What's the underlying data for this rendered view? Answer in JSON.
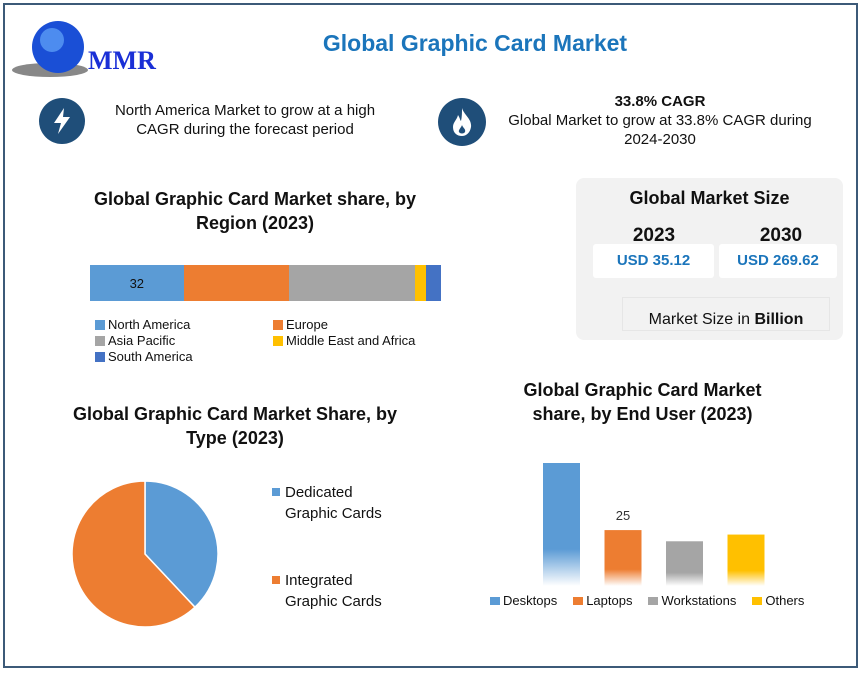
{
  "logo": {
    "text": "MMR"
  },
  "header": {
    "title": "Global Graphic Card Market"
  },
  "highlights": [
    {
      "icon": "lightning-icon",
      "text1": "North America Market to grow at a high",
      "text2": "CAGR during the forecast period"
    },
    {
      "icon": "flame-icon",
      "title": "33.8% CAGR",
      "text1": "Global Market to grow at 33.8% CAGR during",
      "text2": "2024-2030"
    }
  ],
  "market_size": {
    "title": "Global Market Size",
    "years": [
      "2023",
      "2030"
    ],
    "values": [
      "USD 35.12",
      "USD 269.62"
    ],
    "unit_prefix": "Market Size in ",
    "unit_bold": "Billion"
  },
  "chart_data": [
    {
      "type": "bar",
      "orientation": "horizontal-stacked",
      "title": "Global Graphic Card Market share, by Region (2023)",
      "title1": "Global Graphic Card Market share, by",
      "title2": "Region (2023)",
      "series": [
        {
          "name": "North America",
          "value": 32,
          "color": "#5b9bd5",
          "label": "32"
        },
        {
          "name": "Europe",
          "value": 36,
          "color": "#ed7d31"
        },
        {
          "name": "Asia Pacific",
          "value": 43,
          "color": "#a5a5a5"
        },
        {
          "name": "Middle East and Africa",
          "value": 4,
          "color": "#ffc000"
        },
        {
          "name": "South America",
          "value": 5,
          "color": "#4472c4"
        }
      ],
      "legend": "bottom"
    },
    {
      "type": "pie",
      "title1": "Global Graphic Card Market Share, by",
      "title2": "Type (2023)",
      "slices": [
        {
          "name1": "Dedicated",
          "name2": "Graphic Cards",
          "value": 38,
          "color": "#5b9bd5"
        },
        {
          "name1": "Integrated",
          "name2": "Graphic Cards",
          "value": 62,
          "color": "#ed7d31"
        }
      ],
      "legend": "right"
    },
    {
      "type": "bar",
      "title1": "Global Graphic Card Market",
      "title2": "share, by End User (2023)",
      "categories": [
        "Desktops",
        "Laptops",
        "Workstations",
        "Others"
      ],
      "values": [
        55,
        25,
        20,
        23
      ],
      "data_labels": [
        "",
        "25",
        "",
        ""
      ],
      "colors": [
        "#5b9bd5",
        "#ed7d31",
        "#a5a5a5",
        "#ffc000"
      ],
      "legend": "bottom"
    }
  ]
}
